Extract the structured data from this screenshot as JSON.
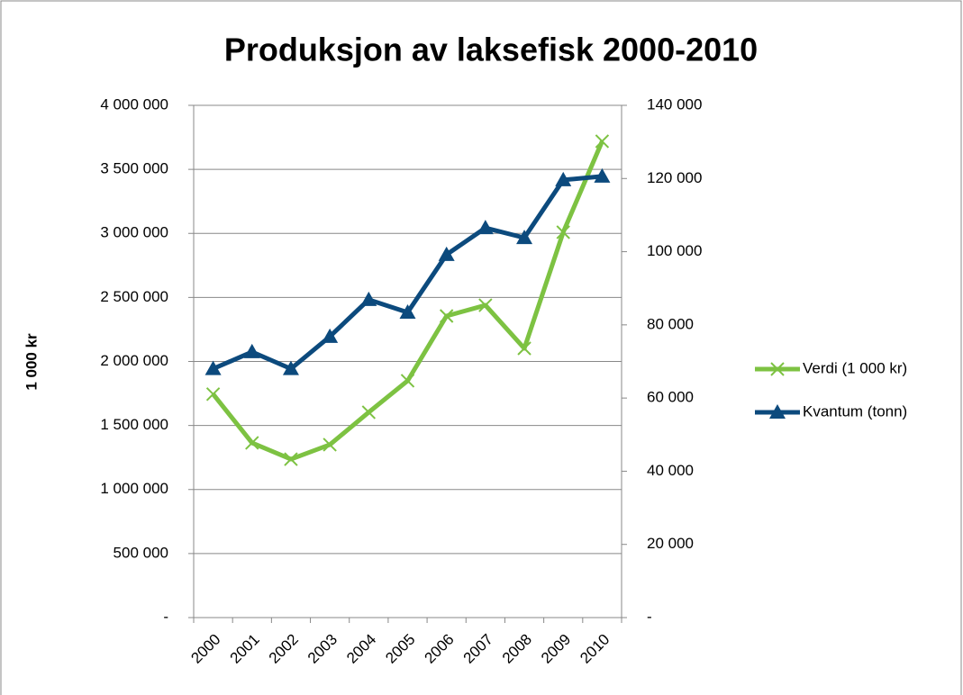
{
  "chart_data": {
    "type": "line",
    "title": "Produksjon av laksefisk 2000-2010",
    "y_label": "1 000 kr",
    "categories": [
      "2000",
      "2001",
      "2002",
      "2003",
      "2004",
      "2005",
      "2006",
      "2007",
      "2008",
      "2009",
      "2010"
    ],
    "series": [
      {
        "name": "Verdi (1 000 kr)",
        "color": "#7dc242",
        "marker": "x",
        "axis": "y",
        "values": [
          1745000,
          1364000,
          1237000,
          1350000,
          1603000,
          1849000,
          2355000,
          2439000,
          2102000,
          3009000,
          3719000
        ]
      },
      {
        "name": "Kvantum (tonn)",
        "color": "#0c4a7d",
        "marker": "triangle",
        "axis": "y2",
        "values": [
          68000,
          72600,
          68000,
          76800,
          86900,
          83400,
          99200,
          106500,
          103800,
          119600,
          120600
        ]
      }
    ],
    "ylim": [
      0,
      4000000
    ],
    "yticks": [
      {
        "value": 0,
        "label": "-"
      },
      {
        "value": 500000,
        "label": "500 000"
      },
      {
        "value": 1000000,
        "label": "1 000 000"
      },
      {
        "value": 1500000,
        "label": "1 500 000"
      },
      {
        "value": 2000000,
        "label": "2 000 000"
      },
      {
        "value": 2500000,
        "label": "2 500 000"
      },
      {
        "value": 3000000,
        "label": "3 000 000"
      },
      {
        "value": 3500000,
        "label": "3 500 000"
      },
      {
        "value": 4000000,
        "label": "4 000 000"
      }
    ],
    "y2lim": [
      0,
      140000
    ],
    "y2ticks": [
      {
        "value": 0,
        "label": "-"
      },
      {
        "value": 20000,
        "label": "20 000"
      },
      {
        "value": 40000,
        "label": "40 000"
      },
      {
        "value": 60000,
        "label": "60 000"
      },
      {
        "value": 80000,
        "label": "80 000"
      },
      {
        "value": 100000,
        "label": "100 000"
      },
      {
        "value": 120000,
        "label": "120 000"
      },
      {
        "value": 140000,
        "label": "140 000"
      }
    ],
    "grid": true,
    "legend": "right"
  }
}
